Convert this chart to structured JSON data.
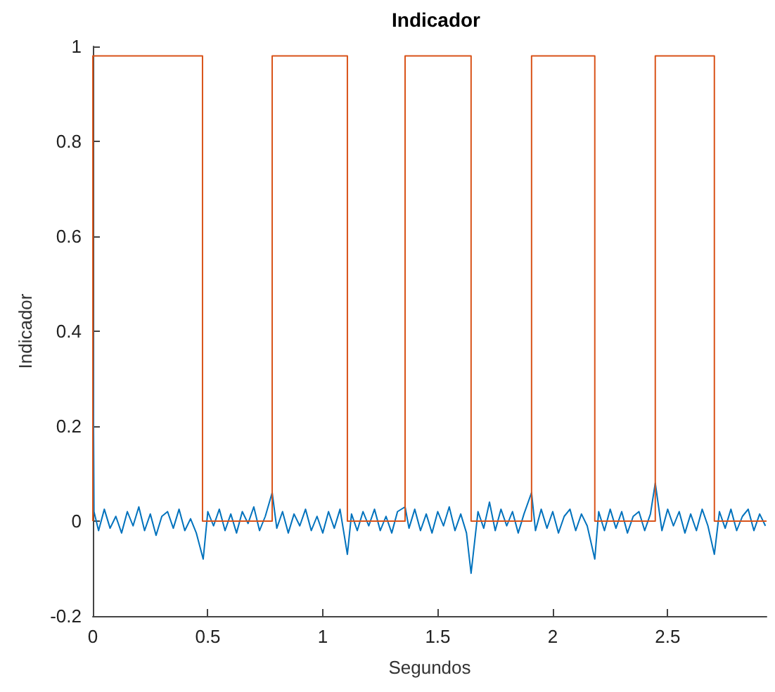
{
  "chart_data": {
    "type": "line",
    "title": "Indicador",
    "xlabel": "Segundos",
    "ylabel": "Indicador",
    "xlim": [
      0,
      2.93
    ],
    "xticks": [
      0,
      0.5,
      1,
      1.5,
      2,
      2.5
    ],
    "ylim": [
      -0.2,
      1
    ],
    "yticks": [
      -0.2,
      0,
      0.2,
      0.4,
      0.6,
      0.8,
      1
    ],
    "grid": false,
    "marker": "none",
    "series": [
      {
        "color": "#0072bd",
        "x": [
          0,
          0.005,
          0.025,
          0.05,
          0.075,
          0.1,
          0.125,
          0.15,
          0.175,
          0.2,
          0.225,
          0.25,
          0.275,
          0.3,
          0.325,
          0.35,
          0.375,
          0.4,
          0.425,
          0.45,
          0.48,
          0.5,
          0.525,
          0.55,
          0.575,
          0.6,
          0.625,
          0.65,
          0.675,
          0.7,
          0.725,
          0.75,
          0.78,
          0.8,
          0.825,
          0.85,
          0.875,
          0.9,
          0.925,
          0.95,
          0.975,
          1,
          1.025,
          1.05,
          1.075,
          1.107,
          1.125,
          1.15,
          1.175,
          1.2,
          1.225,
          1.25,
          1.275,
          1.3,
          1.325,
          1.358,
          1.375,
          1.4,
          1.425,
          1.45,
          1.475,
          1.5,
          1.525,
          1.55,
          1.575,
          1.6,
          1.625,
          1.645,
          1.675,
          1.7,
          1.725,
          1.75,
          1.775,
          1.8,
          1.825,
          1.85,
          1.875,
          1.908,
          1.925,
          1.95,
          1.975,
          2,
          2.025,
          2.05,
          2.075,
          2.1,
          2.125,
          2.15,
          2.183,
          2.2,
          2.225,
          2.25,
          2.275,
          2.3,
          2.325,
          2.35,
          2.375,
          2.4,
          2.425,
          2.446,
          2.475,
          2.5,
          2.525,
          2.55,
          2.575,
          2.6,
          2.625,
          2.65,
          2.675,
          2.703,
          2.725,
          2.75,
          2.775,
          2.8,
          2.825,
          2.85,
          2.875,
          2.9,
          2.925
        ],
        "values": [
          0.49,
          0.02,
          -0.02,
          0.025,
          -0.015,
          0.01,
          -0.025,
          0.02,
          -0.01,
          0.03,
          -0.02,
          0.015,
          -0.03,
          0.01,
          0.02,
          -0.015,
          0.025,
          -0.02,
          0.005,
          -0.025,
          -0.08,
          0.02,
          -0.01,
          0.025,
          -0.02,
          0.015,
          -0.025,
          0.02,
          -0.005,
          0.03,
          -0.02,
          0.01,
          0.06,
          -0.015,
          0.02,
          -0.025,
          0.015,
          -0.01,
          0.025,
          -0.02,
          0.01,
          -0.025,
          0.02,
          -0.015,
          0.025,
          -0.07,
          0.015,
          -0.02,
          0.02,
          -0.01,
          0.025,
          -0.02,
          0.01,
          -0.025,
          0.02,
          0.03,
          -0.015,
          0.025,
          -0.02,
          0.015,
          -0.025,
          0.02,
          -0.01,
          0.03,
          -0.02,
          0.015,
          -0.025,
          -0.11,
          0.02,
          -0.015,
          0.04,
          -0.02,
          0.025,
          -0.01,
          0.02,
          -0.025,
          0.015,
          0.06,
          -0.02,
          0.025,
          -0.015,
          0.02,
          -0.025,
          0.01,
          0.025,
          -0.02,
          0.015,
          -0.01,
          -0.08,
          0.02,
          -0.02,
          0.025,
          -0.015,
          0.02,
          -0.025,
          0.01,
          0.02,
          -0.02,
          0.015,
          0.08,
          -0.02,
          0.025,
          -0.01,
          0.02,
          -0.025,
          0.015,
          -0.02,
          0.025,
          -0.01,
          -0.07,
          0.02,
          -0.015,
          0.025,
          -0.02,
          0.01,
          0.025,
          -0.02,
          0.015,
          -0.01
        ]
      },
      {
        "type": "step",
        "color": "#d95319",
        "x": [
          0,
          0,
          0.477,
          0.78,
          1.107,
          1.358,
          1.645,
          1.908,
          2.183,
          2.446,
          2.703,
          2.93
        ],
        "values": [
          0,
          0.98,
          0,
          0.98,
          0,
          0.98,
          0,
          0.98,
          0,
          0.98,
          0,
          0
        ]
      }
    ]
  }
}
